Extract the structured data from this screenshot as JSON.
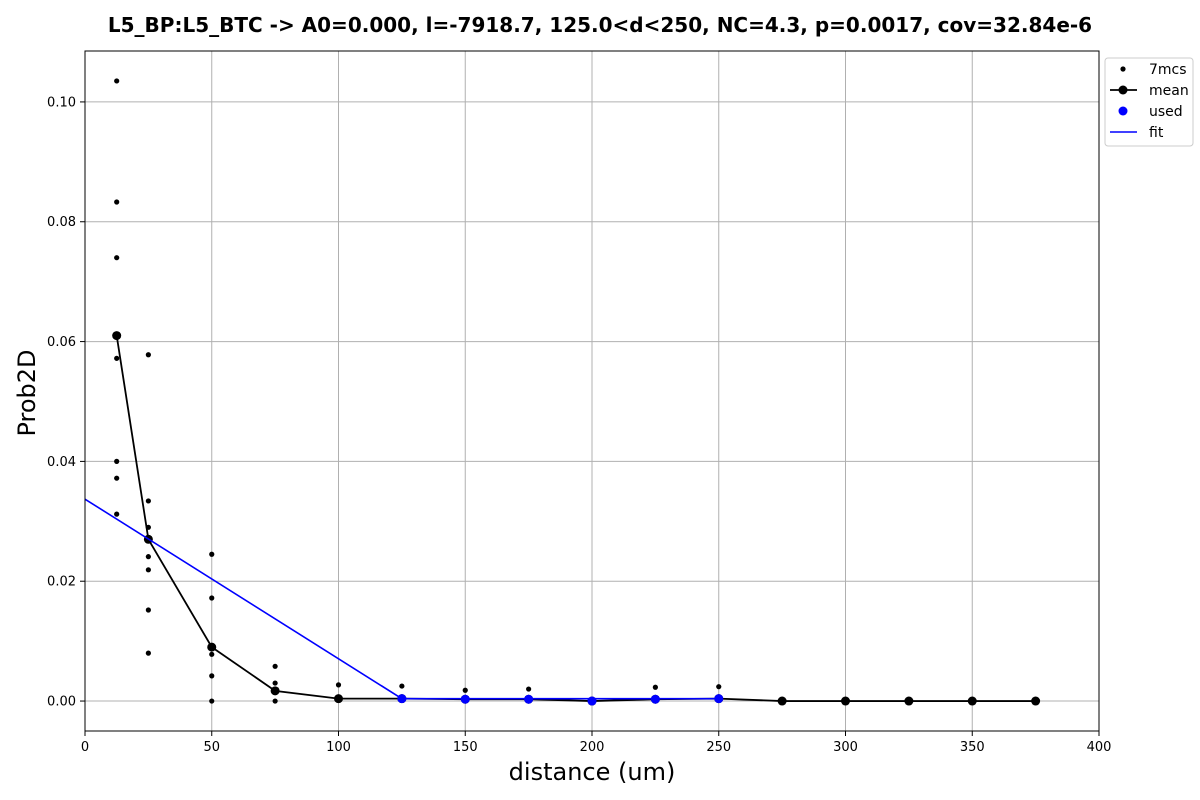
{
  "chart_data": {
    "type": "scatter",
    "title": "L5_BP:L5_BTC -> A0=0.000, l=-7918.7, 125.0<d<250, NC=4.3, p=0.0017, cov=32.84e-6",
    "xlabel": "distance (um)",
    "ylabel": "Prob2D",
    "xlim": [
      0,
      400
    ],
    "ylim": [
      -0.005,
      0.1085
    ],
    "x_ticks": [
      0,
      50,
      100,
      150,
      200,
      250,
      300,
      350,
      400
    ],
    "x_tick_labels": [
      "0",
      "50",
      "100",
      "150",
      "200",
      "250",
      "300",
      "350",
      "400"
    ],
    "y_ticks": [
      0.0,
      0.02,
      0.04,
      0.06,
      0.08,
      0.1
    ],
    "y_tick_labels": [
      "0.00",
      "0.02",
      "0.04",
      "0.06",
      "0.08",
      "0.10"
    ],
    "grid": true,
    "legend_position": "top-right (outside)",
    "series": [
      {
        "name": "7mcs",
        "kind": "scatter",
        "color": "#000000",
        "points": [
          [
            12.5,
            0.1035
          ],
          [
            12.5,
            0.0833
          ],
          [
            12.5,
            0.074
          ],
          [
            12.5,
            0.0572
          ],
          [
            12.5,
            0.04
          ],
          [
            12.5,
            0.0372
          ],
          [
            12.5,
            0.0312
          ],
          [
            25,
            0.0578
          ],
          [
            25,
            0.0334
          ],
          [
            25,
            0.029
          ],
          [
            25,
            0.0241
          ],
          [
            25,
            0.0219
          ],
          [
            25,
            0.0152
          ],
          [
            25,
            0.008
          ],
          [
            50,
            0.0245
          ],
          [
            50,
            0.0172
          ],
          [
            50,
            0.0078
          ],
          [
            50,
            0.0042
          ],
          [
            50,
            0.0
          ],
          [
            75,
            0.0058
          ],
          [
            75,
            0.003
          ],
          [
            75,
            0.0
          ],
          [
            100,
            0.0027
          ],
          [
            125,
            0.0025
          ],
          [
            150,
            0.0018
          ],
          [
            175,
            0.002
          ],
          [
            225,
            0.0023
          ],
          [
            250,
            0.0024
          ]
        ]
      },
      {
        "name": "mean",
        "kind": "line-marker",
        "color": "#000000",
        "points": [
          [
            12.5,
            0.061
          ],
          [
            25,
            0.027
          ],
          [
            50,
            0.009
          ],
          [
            75,
            0.0017
          ],
          [
            100,
            0.0004
          ],
          [
            125,
            0.0004
          ],
          [
            150,
            0.0003
          ],
          [
            175,
            0.0003
          ],
          [
            200,
            0.0
          ],
          [
            225,
            0.0003
          ],
          [
            250,
            0.0004
          ],
          [
            275,
            0.0
          ],
          [
            300,
            0.0
          ],
          [
            325,
            0.0
          ],
          [
            350,
            0.0
          ],
          [
            375,
            0.0
          ]
        ]
      },
      {
        "name": "used",
        "kind": "scatter",
        "color": "#0000ff",
        "points": [
          [
            125,
            0.0004
          ],
          [
            150,
            0.0003
          ],
          [
            175,
            0.0003
          ],
          [
            200,
            0.0
          ],
          [
            225,
            0.0003
          ],
          [
            250,
            0.0004
          ]
        ]
      },
      {
        "name": "fit",
        "kind": "line",
        "color": "#0000ff",
        "points": [
          [
            0,
            0.0337
          ],
          [
            125,
            0.0004
          ],
          [
            150,
            0.0004
          ],
          [
            175,
            0.0004
          ],
          [
            200,
            0.0004
          ],
          [
            225,
            0.0004
          ],
          [
            250,
            0.0004
          ]
        ]
      }
    ]
  }
}
